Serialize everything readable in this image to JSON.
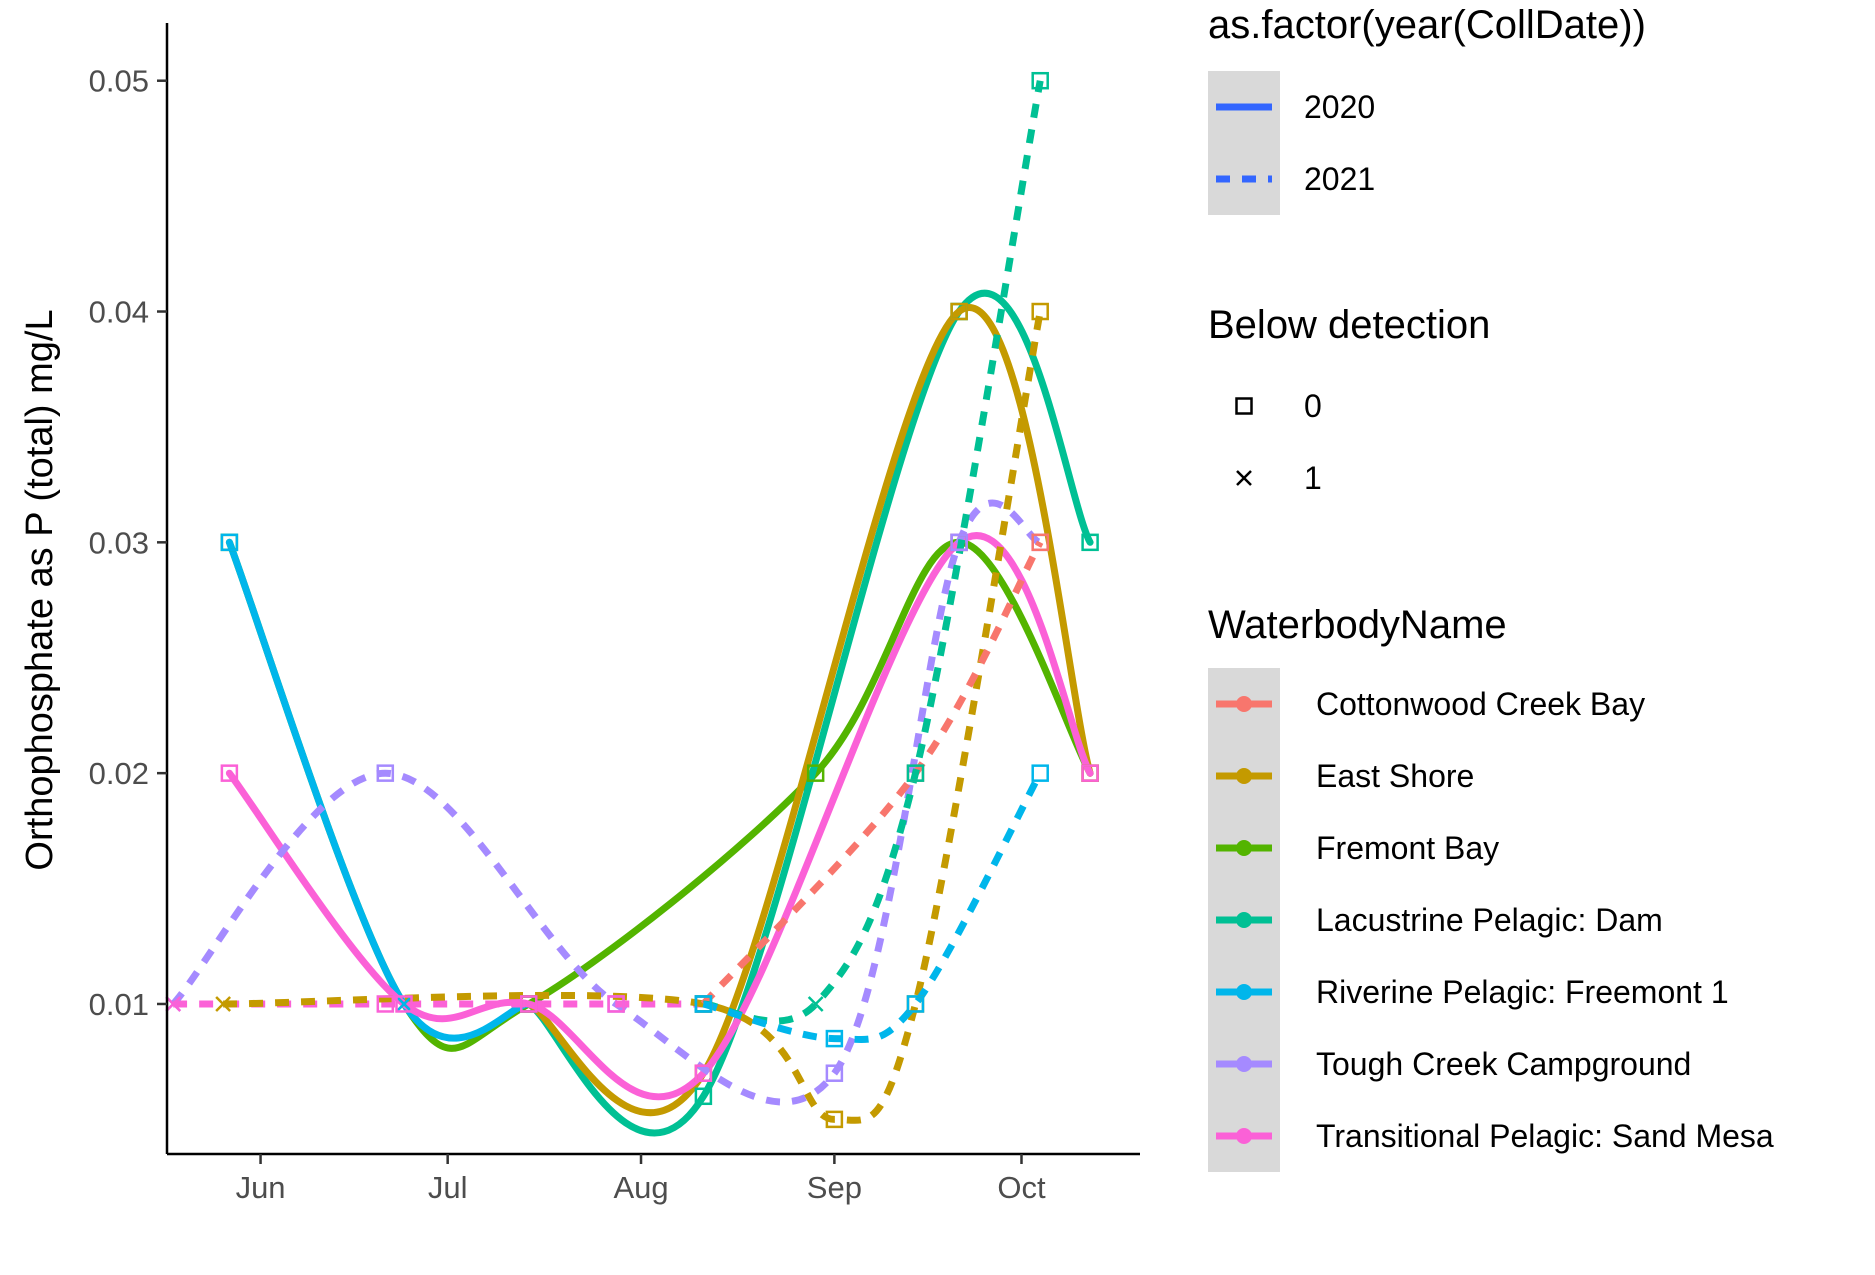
{
  "chart_data": {
    "type": "line",
    "title": "",
    "xlabel": "",
    "ylabel": "Orthophosphate as P (total) mg/L",
    "x_axis_type": "date",
    "x_ticks": [
      {
        "date": "06-01",
        "label": "Jun"
      },
      {
        "date": "07-01",
        "label": "Jul"
      },
      {
        "date": "08-01",
        "label": "Aug"
      },
      {
        "date": "09-01",
        "label": "Sep"
      },
      {
        "date": "10-01",
        "label": "Oct"
      }
    ],
    "xlim": [
      "05-17",
      "10-20"
    ],
    "ylim": [
      0.0035,
      0.0525
    ],
    "y_ticks": [
      0.01,
      0.02,
      0.03,
      0.04,
      0.05
    ],
    "y_tick_labels": [
      "0.01",
      "0.02",
      "0.03",
      "0.04",
      "0.05"
    ],
    "grid": false,
    "legend_position": "right",
    "legends": [
      {
        "title": "as.factor(year(CollDate))",
        "kind": "linetype",
        "entries": [
          {
            "label": "2020",
            "dash": "solid"
          },
          {
            "label": "2021",
            "dash": "dashed"
          }
        ]
      },
      {
        "title": "Below detection",
        "kind": "shape",
        "entries": [
          {
            "label": "0",
            "shape": "square"
          },
          {
            "label": "1",
            "shape": "cross"
          }
        ]
      },
      {
        "title": "WaterbodyName",
        "kind": "color",
        "entries": [
          {
            "label": "Cottonwood Creek Bay",
            "color": "#F8766D"
          },
          {
            "label": "East Shore",
            "color": "#C49A00"
          },
          {
            "label": "Fremont Bay",
            "color": "#53B400"
          },
          {
            "label": "Lacustrine Pelagic: Dam",
            "color": "#00C094"
          },
          {
            "label": "Riverine Pelagic: Freemont 1",
            "color": "#00B6EB"
          },
          {
            "label": "Tough Creek Campground",
            "color": "#A58AFF"
          },
          {
            "label": "Transitional Pelagic: Sand Mesa",
            "color": "#FB61D7"
          }
        ]
      }
    ],
    "series": [
      {
        "waterbody": "Fremont Bay",
        "year": "2020",
        "color": "#53B400",
        "dash": "solid",
        "points": [
          {
            "x": "05-27",
            "y": 0.03,
            "below_detection": 0
          },
          {
            "x": "06-24",
            "y": 0.01,
            "below_detection": 1
          },
          {
            "x": "07-14",
            "y": 0.01,
            "below_detection": 0
          },
          {
            "x": "08-29",
            "y": 0.02,
            "below_detection": 0
          },
          {
            "x": "09-21",
            "y": 0.03,
            "below_detection": 0
          },
          {
            "x": "10-12",
            "y": 0.02,
            "below_detection": 0
          }
        ]
      },
      {
        "waterbody": "Riverine Pelagic: Freemont 1",
        "year": "2020",
        "color": "#00B6EB",
        "dash": "solid",
        "points": [
          {
            "x": "05-27",
            "y": 0.03,
            "below_detection": 0
          },
          {
            "x": "06-24",
            "y": 0.01,
            "below_detection": 1
          },
          {
            "x": "07-14",
            "y": 0.01,
            "below_detection": 0
          }
        ]
      },
      {
        "waterbody": "Lacustrine Pelagic: Dam",
        "year": "2020",
        "color": "#00C094",
        "dash": "solid",
        "points": [
          {
            "x": "07-14",
            "y": 0.01,
            "below_detection": 0
          },
          {
            "x": "08-11",
            "y": 0.006,
            "below_detection": 0
          },
          {
            "x": "09-21",
            "y": 0.04,
            "below_detection": 0
          },
          {
            "x": "10-12",
            "y": 0.03,
            "below_detection": 0
          }
        ]
      },
      {
        "waterbody": "East Shore",
        "year": "2020",
        "color": "#C49A00",
        "dash": "solid",
        "points": [
          {
            "x": "07-14",
            "y": 0.01,
            "below_detection": 0
          },
          {
            "x": "08-11",
            "y": 0.007,
            "below_detection": 0
          },
          {
            "x": "09-21",
            "y": 0.04,
            "below_detection": 0
          },
          {
            "x": "10-12",
            "y": 0.02,
            "below_detection": 0
          }
        ]
      },
      {
        "waterbody": "Transitional Pelagic: Sand Mesa",
        "year": "2020",
        "color": "#FB61D7",
        "dash": "solid",
        "points": [
          {
            "x": "05-27",
            "y": 0.02,
            "below_detection": 0
          },
          {
            "x": "06-24",
            "y": 0.01,
            "below_detection": 0
          },
          {
            "x": "07-14",
            "y": 0.01,
            "below_detection": 0
          },
          {
            "x": "08-11",
            "y": 0.007,
            "below_detection": 0
          },
          {
            "x": "09-21",
            "y": 0.03,
            "below_detection": 0
          },
          {
            "x": "10-12",
            "y": 0.02,
            "below_detection": 0
          }
        ]
      },
      {
        "waterbody": "Tough Creek Campground",
        "year": "2021",
        "color": "#A58AFF",
        "dash": "dashed",
        "points": [
          {
            "x": "05-18",
            "y": 0.01,
            "below_detection": 1
          },
          {
            "x": "06-21",
            "y": 0.02,
            "below_detection": 0
          },
          {
            "x": "07-28",
            "y": 0.01,
            "below_detection": 0
          },
          {
            "x": "09-01",
            "y": 0.007,
            "below_detection": 0
          },
          {
            "x": "09-21",
            "y": 0.03,
            "below_detection": 0
          },
          {
            "x": "10-04",
            "y": 0.03,
            "below_detection": 0
          }
        ]
      },
      {
        "waterbody": "Transitional Pelagic: Sand Mesa",
        "year": "2021",
        "color": "#FB61D7",
        "dash": "dashed",
        "points": [
          {
            "x": "05-18",
            "y": 0.01,
            "below_detection": 1
          },
          {
            "x": "06-21",
            "y": 0.01,
            "below_detection": 0
          },
          {
            "x": "07-28",
            "y": 0.01,
            "below_detection": 0
          },
          {
            "x": "08-11",
            "y": 0.01,
            "below_detection": 0
          }
        ]
      },
      {
        "waterbody": "East Shore",
        "year": "2021",
        "color": "#C49A00",
        "dash": "dashed",
        "points": [
          {
            "x": "05-26",
            "y": 0.01,
            "below_detection": 1
          },
          {
            "x": "08-11",
            "y": 0.01,
            "below_detection": 0
          },
          {
            "x": "09-01",
            "y": 0.005,
            "below_detection": 0
          },
          {
            "x": "09-14",
            "y": 0.01,
            "below_detection": 0
          },
          {
            "x": "10-04",
            "y": 0.04,
            "below_detection": 0
          }
        ]
      },
      {
        "waterbody": "Cottonwood Creek Bay",
        "year": "2021",
        "color": "#F8766D",
        "dash": "dashed",
        "points": [
          {
            "x": "08-11",
            "y": 0.01,
            "below_detection": 0
          },
          {
            "x": "09-14",
            "y": 0.02,
            "below_detection": 0
          },
          {
            "x": "10-04",
            "y": 0.03,
            "below_detection": 0
          }
        ]
      },
      {
        "waterbody": "Lacustrine Pelagic: Dam",
        "year": "2021",
        "color": "#00C094",
        "dash": "dashed",
        "points": [
          {
            "x": "08-11",
            "y": 0.01,
            "below_detection": 0
          },
          {
            "x": "08-29",
            "y": 0.01,
            "below_detection": 1
          },
          {
            "x": "09-14",
            "y": 0.02,
            "below_detection": 0
          },
          {
            "x": "10-04",
            "y": 0.05,
            "below_detection": 0
          }
        ]
      },
      {
        "waterbody": "Riverine Pelagic: Freemont 1",
        "year": "2021",
        "color": "#00B6EB",
        "dash": "dashed",
        "points": [
          {
            "x": "08-11",
            "y": 0.01,
            "below_detection": 0
          },
          {
            "x": "09-01",
            "y": 0.0085,
            "below_detection": 0
          },
          {
            "x": "09-14",
            "y": 0.01,
            "below_detection": 0
          },
          {
            "x": "10-04",
            "y": 0.02,
            "below_detection": 0
          }
        ]
      }
    ]
  }
}
